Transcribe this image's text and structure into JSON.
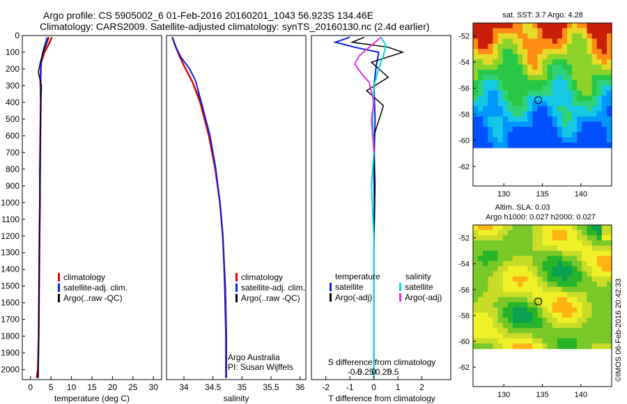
{
  "header": {
    "line1": "Argo profile: CS 5905002_6 01-Feb-2016 20160201_1043 56.923S 134.46E",
    "line2": "Climatology: CARS2009. Satellite-adjusted climatology: synTS_20160130.nc (2.4d earlier)"
  },
  "colors": {
    "climatology": "#e00000",
    "satellite": "#0a1ee6",
    "argo": "#000000",
    "salinity_sat": "#00dcdc",
    "salinity_argo": "#e62ae6"
  },
  "depth_axis": {
    "ticks": [
      "0",
      "100",
      "200",
      "300",
      "400",
      "500",
      "600",
      "700",
      "800",
      "900",
      "1000",
      "1100",
      "1200",
      "1300",
      "1400",
      "1500",
      "1600",
      "1700",
      "1800",
      "1900",
      "2000"
    ],
    "range": [
      0,
      2060
    ]
  },
  "chart_data": [
    {
      "type": "line",
      "name": "temperature",
      "xlabel": "temperature (deg C)",
      "xticks": [
        "0",
        "5",
        "10",
        "15",
        "20",
        "25",
        "30"
      ],
      "xlim": [
        -2,
        32
      ],
      "legend": [
        "climatology",
        "satellite-adj. clim.",
        "Argo(..raw -QC)"
      ],
      "series": [
        {
          "name": "climatology",
          "x": [
            5.2,
            4.5,
            3.4,
            2.6,
            2.4,
            2.5,
            2.4,
            2.3,
            2.3,
            2.2,
            2.1,
            2.0,
            1.8,
            1.5
          ],
          "y": [
            10,
            50,
            100,
            160,
            250,
            400,
            600,
            800,
            1000,
            1200,
            1500,
            1800,
            2000,
            2050
          ]
        },
        {
          "name": "satellite-adj. clim.",
          "x": [
            4.1,
            3.6,
            3.0,
            2.6,
            2.5,
            2.5,
            2.4,
            2.3,
            2.3,
            2.2,
            2.1,
            2.0,
            1.9,
            1.9
          ],
          "y": [
            10,
            50,
            100,
            160,
            250,
            400,
            600,
            800,
            1000,
            1200,
            1500,
            1800,
            2000,
            2050
          ]
        },
        {
          "name": "Argo(..raw -QC)",
          "x": [
            4.5,
            3.9,
            3.1,
            2.4,
            1.9,
            2.7,
            2.4,
            2.4,
            2.3,
            2.2,
            2.1,
            2.0,
            1.9,
            1.8
          ],
          "y": [
            10,
            50,
            100,
            160,
            220,
            300,
            500,
            800,
            1000,
            1200,
            1500,
            1800,
            2000,
            2050
          ]
        }
      ]
    },
    {
      "type": "line",
      "name": "salinity",
      "xlabel": "salinity",
      "xticks": [
        "34",
        "34.5",
        "35",
        "35.5",
        "36"
      ],
      "xlim": [
        33.7,
        36.1
      ],
      "legend": [
        "climatology",
        "satellite-adj. clim.",
        "Argo(..raw -QC)"
      ],
      "annotation": [
        "Argo Australia",
        "PI: Susan Wijffels"
      ],
      "series": [
        {
          "name": "climatology",
          "x": [
            33.8,
            33.85,
            33.92,
            34.0,
            34.15,
            34.3,
            34.45,
            34.55,
            34.62,
            34.67,
            34.7,
            34.72,
            34.72,
            34.72
          ],
          "y": [
            10,
            60,
            120,
            180,
            280,
            400,
            600,
            800,
            1000,
            1200,
            1500,
            1800,
            2000,
            2050
          ]
        },
        {
          "name": "satellite-adj. clim.",
          "x": [
            33.8,
            33.85,
            33.92,
            34.0,
            34.15,
            34.28,
            34.43,
            34.54,
            34.62,
            34.67,
            34.71,
            34.73,
            34.73,
            34.73
          ],
          "y": [
            10,
            60,
            120,
            180,
            280,
            400,
            600,
            800,
            1000,
            1200,
            1500,
            1800,
            2000,
            2050
          ]
        },
        {
          "name": "Argo(..raw -QC)",
          "x": [
            33.8,
            33.85,
            33.95,
            34.1,
            34.2,
            34.3,
            34.45,
            34.55,
            34.62,
            34.67,
            34.71,
            34.73,
            34.73,
            34.73
          ],
          "y": [
            10,
            60,
            130,
            200,
            270,
            400,
            600,
            800,
            1000,
            1200,
            1500,
            1800,
            2000,
            2050
          ]
        }
      ]
    },
    {
      "type": "line",
      "name": "difference",
      "xlabel": "T difference from climatology",
      "title_top": "S difference from climatology",
      "xticks": [
        "-2",
        "-1",
        "0",
        "1",
        "2"
      ],
      "xticks_top": [
        "-0.5",
        "-0.25",
        "0",
        "0.25",
        "0.5"
      ],
      "xlim": [
        -2.6,
        3.2
      ],
      "legend_left_title": "temperature",
      "legend_right_title": "salinity",
      "legend_left": [
        "satellite",
        "Argo(-adj)"
      ],
      "legend_right": [
        "satellite",
        "Argo(-adj)"
      ],
      "series": [
        {
          "name": "temperature satellite",
          "x": [
            -1.0,
            -1.6,
            -0.8,
            0.2,
            0.1,
            0.0,
            0.05,
            0.0,
            0.02,
            0.0,
            0.0,
            0.0,
            0.0
          ],
          "y": [
            10,
            40,
            70,
            100,
            180,
            300,
            500,
            800,
            1000,
            1300,
            1600,
            1900,
            2050
          ]
        },
        {
          "name": "temperature Argo(-adj)",
          "x": [
            -0.4,
            -0.9,
            0.6,
            1.2,
            -0.1,
            0.6,
            -0.3,
            0.4,
            0.0,
            0.05,
            0.0,
            0.0,
            0.0
          ],
          "y": [
            10,
            40,
            70,
            100,
            160,
            250,
            330,
            420,
            600,
            900,
            1300,
            1700,
            2050
          ]
        },
        {
          "name": "salinity satellite",
          "x": [
            0.3,
            0.5,
            0.4,
            0.2,
            0.0,
            -0.05,
            0.0,
            -0.1,
            0.0,
            0.0,
            0.0
          ],
          "y": [
            10,
            60,
            120,
            200,
            300,
            500,
            700,
            900,
            1200,
            1600,
            2050
          ]
        },
        {
          "name": "salinity Argo(-adj)",
          "x": [
            0.3,
            -0.6,
            -0.8,
            -0.5,
            -0.2,
            0.0,
            -0.1,
            0.0
          ],
          "y": [
            10,
            120,
            170,
            230,
            280,
            400,
            500,
            700
          ]
        }
      ]
    },
    {
      "type": "heatmap",
      "name": "sst_map",
      "title": "sat. SST: 3.7 Argo: 4.28",
      "xticks": [
        "130",
        "135",
        "140"
      ],
      "yticks": [
        "-52",
        "-54",
        "-56",
        "-58",
        "-60",
        "-62"
      ],
      "xlim": [
        126,
        144
      ],
      "ylim": [
        -63.5,
        -51
      ]
    },
    {
      "type": "heatmap",
      "name": "sla_map",
      "title": [
        "Altim. SLA: 0.03",
        "Argo h1000: 0.027 h2000: 0.027"
      ],
      "xticks": [
        "130",
        "135",
        "140"
      ],
      "yticks": [
        "-52",
        "-54",
        "-56",
        "-58",
        "-60",
        "-62"
      ],
      "xlim": [
        126,
        144
      ],
      "ylim": [
        -63.5,
        -51
      ]
    }
  ],
  "marker": {
    "lon": 134.46,
    "lat": -56.923
  },
  "footer": {
    "stamp": "©IMOS 06-Feb-2016 20:42:33"
  }
}
